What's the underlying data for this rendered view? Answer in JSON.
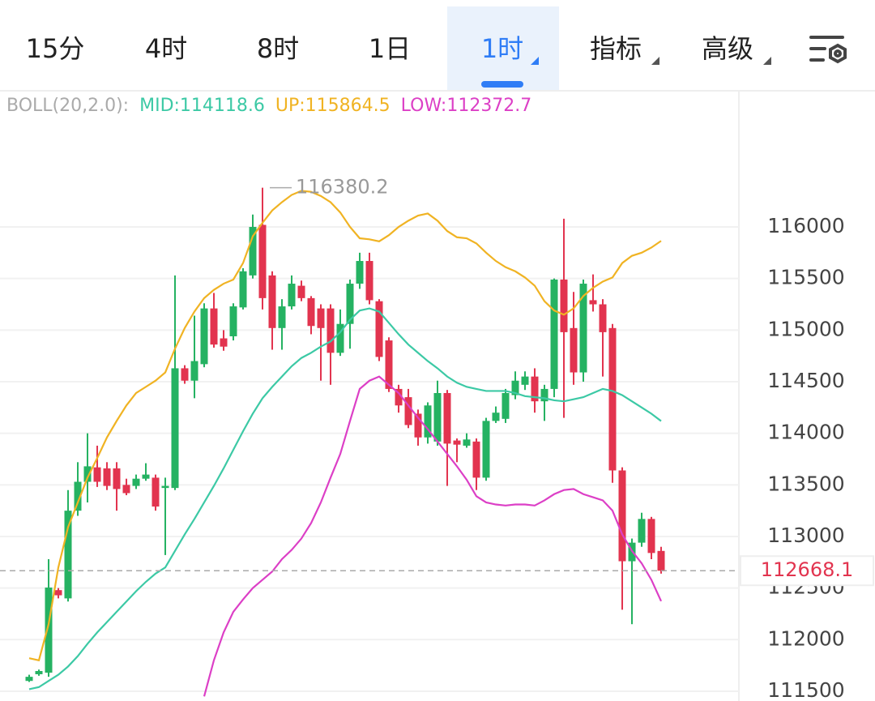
{
  "tabs": [
    "15分",
    "4时",
    "8时",
    "1日",
    "1时",
    "指标",
    "高级"
  ],
  "active_tab": 4,
  "chart_data": {
    "type": "candlestick",
    "indicator": "BOLL(20,2.0):",
    "ylim": [
      111400,
      117300
    ],
    "yticks": [
      111500,
      112000,
      112500,
      113000,
      113500,
      114000,
      114500,
      115000,
      115500,
      116000
    ],
    "grid": true,
    "up_color": "#25b262",
    "down_color": "#e2344f",
    "candles": {
      "open": [
        111600,
        111665,
        111680,
        112480,
        112400,
        113250,
        113530,
        113670,
        113660,
        113660,
        113500,
        113490,
        113560,
        113570,
        113470,
        113470,
        114630,
        114510,
        114670,
        115210,
        114920,
        114940,
        115220,
        115530,
        116020,
        115530,
        115020,
        115230,
        115430,
        115310,
        115210,
        115210,
        114780,
        115060,
        115450,
        115670,
        115280,
        114900,
        114430,
        114350,
        114190,
        113960,
        113920,
        114390,
        113930,
        113880,
        113920,
        113570,
        114120,
        114140,
        114370,
        114470,
        114550,
        114310,
        114430,
        115490,
        115020,
        114590,
        115290,
        115250,
        115020,
        113640,
        112760,
        112940,
        113170,
        112860
      ],
      "high": [
        111660,
        111710,
        112780,
        112500,
        113450,
        113720,
        114000,
        113880,
        113720,
        113720,
        113560,
        113600,
        113710,
        113600,
        113570,
        115530,
        114660,
        115140,
        115260,
        115360,
        115000,
        115260,
        115600,
        116120,
        116380.2,
        115570,
        115300,
        115530,
        115480,
        115330,
        115250,
        115250,
        115200,
        115490,
        115750,
        115750,
        115300,
        114930,
        114470,
        114430,
        114230,
        114300,
        114510,
        114420,
        113950,
        114000,
        113950,
        114150,
        114260,
        114430,
        114600,
        114600,
        114630,
        114470,
        115500,
        116080,
        115370,
        115490,
        115540,
        115300,
        115060,
        113670,
        112980,
        113230,
        113190,
        112900
      ],
      "low": [
        111590,
        111650,
        111640,
        112400,
        112370,
        113200,
        113330,
        113480,
        113450,
        113250,
        113400,
        113460,
        113540,
        113250,
        112820,
        113450,
        114480,
        114340,
        114640,
        114830,
        114800,
        114900,
        115200,
        115500,
        115200,
        114810,
        114810,
        115200,
        115280,
        114960,
        114510,
        114470,
        114750,
        114820,
        115400,
        115250,
        114700,
        114400,
        114200,
        114050,
        113880,
        113900,
        113880,
        113490,
        113720,
        113860,
        113450,
        113540,
        114100,
        114100,
        114330,
        114420,
        114200,
        114120,
        114350,
        114150,
        114470,
        114500,
        115180,
        114550,
        113520,
        112290,
        112150,
        112900,
        112780,
        112640
      ],
      "close": [
        111640,
        111696,
        112505,
        112430,
        113250,
        113530,
        113680,
        113530,
        113490,
        113460,
        113420,
        113560,
        113600,
        113290,
        113490,
        114630,
        114510,
        114700,
        115210,
        114860,
        114840,
        115230,
        115570,
        116000,
        115310,
        115020,
        115230,
        115450,
        115310,
        115040,
        115020,
        114780,
        115060,
        115450,
        115670,
        115290,
        114740,
        114430,
        114270,
        114080,
        113960,
        114270,
        114390,
        113900,
        113890,
        113940,
        113570,
        114120,
        114200,
        114390,
        114510,
        114550,
        114310,
        114430,
        115490,
        114980,
        114590,
        115450,
        115250,
        114980,
        113640,
        112760,
        112940,
        113170,
        112840,
        112668.1
      ]
    },
    "series": [
      {
        "name": "MID:114118.6",
        "color": "#3cc9a5",
        "values": [
          111520,
          111540,
          111600,
          111660,
          111740,
          111840,
          111960,
          112070,
          112170,
          112270,
          112370,
          112470,
          112560,
          112640,
          112700,
          112860,
          113020,
          113170,
          113330,
          113490,
          113660,
          113840,
          114020,
          114190,
          114340,
          114450,
          114550,
          114650,
          114730,
          114780,
          114840,
          114890,
          114980,
          115100,
          115190,
          115210,
          115180,
          115070,
          114960,
          114860,
          114780,
          114700,
          114630,
          114550,
          114490,
          114450,
          114430,
          114410,
          114410,
          114410,
          114390,
          114360,
          114350,
          114340,
          114320,
          114310,
          114330,
          114350,
          114390,
          114430,
          114410,
          114370,
          114310,
          114250,
          114190,
          114118.6
        ]
      },
      {
        "name": "UP:115864.5",
        "color": "#f0b323",
        "values": [
          111820,
          111800,
          112150,
          112700,
          113090,
          113330,
          113570,
          113760,
          113960,
          114120,
          114270,
          114390,
          114450,
          114510,
          114590,
          114820,
          115020,
          115180,
          115310,
          115390,
          115450,
          115490,
          115650,
          115910,
          116040,
          116160,
          116240,
          116310,
          116350,
          116340,
          116300,
          116240,
          116140,
          116000,
          115890,
          115880,
          115860,
          115920,
          116000,
          116060,
          116110,
          116130,
          116060,
          115960,
          115900,
          115890,
          115840,
          115750,
          115670,
          115610,
          115570,
          115510,
          115430,
          115280,
          115190,
          115150,
          115210,
          115330,
          115410,
          115470,
          115510,
          115650,
          115720,
          115750,
          115800,
          115864.5
        ]
      },
      {
        "name": "LOW:112372.7",
        "color": "#dc3fc6",
        "values": [
          null,
          null,
          null,
          null,
          null,
          null,
          null,
          null,
          null,
          null,
          null,
          null,
          null,
          null,
          null,
          null,
          null,
          null,
          111450,
          111800,
          112070,
          112270,
          112390,
          112500,
          112580,
          112660,
          112780,
          112870,
          112980,
          113130,
          113330,
          113570,
          113800,
          114120,
          114430,
          114510,
          114550,
          114470,
          114390,
          114270,
          114150,
          114040,
          113920,
          113800,
          113680,
          113550,
          113390,
          113330,
          113310,
          113300,
          113310,
          113310,
          113300,
          113350,
          113410,
          113450,
          113460,
          113410,
          113380,
          113350,
          113250,
          113020,
          112860,
          112740,
          112580,
          112372.7
        ]
      }
    ],
    "max_marker": 116380.2,
    "last_price": 112668.1
  }
}
